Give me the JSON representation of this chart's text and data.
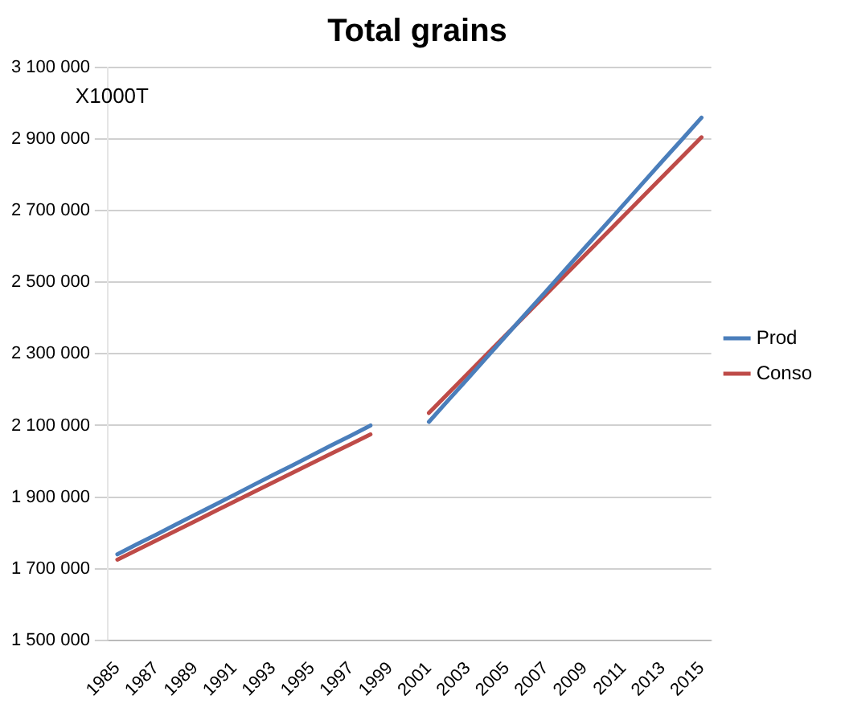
{
  "chart_data": {
    "type": "line",
    "title": "Total grains",
    "ylabel": "X1000T",
    "categories": [
      "1985",
      null,
      "1987",
      null,
      "1989",
      null,
      "1991",
      null,
      "1993",
      null,
      "1995",
      null,
      "1997",
      null,
      "1999",
      null,
      "2001",
      null,
      "2003",
      null,
      "2005",
      null,
      "2007",
      null,
      "2009",
      null,
      "2011",
      null,
      "2013",
      null,
      "2015"
    ],
    "series": [
      {
        "name": "Prod",
        "color": "#4a7ebb",
        "values": [
          1740000,
          1768000,
          1795000,
          1823000,
          1851000,
          1878000,
          1906000,
          1934000,
          1962000,
          1989000,
          2017000,
          2045000,
          2072000,
          2100000,
          null,
          null,
          2110000,
          2171000,
          2231000,
          2292000,
          2353000,
          2414000,
          2474000,
          2535000,
          2596000,
          2656000,
          2717000,
          2778000,
          2839000,
          2899000,
          2960000
        ]
      },
      {
        "name": "Conso",
        "color": "#be4b48",
        "values": [
          1725000,
          1752000,
          1779000,
          1806000,
          1833000,
          1860000,
          1887000,
          1914000,
          1941000,
          1968000,
          1995000,
          2022000,
          2048000,
          2075000,
          null,
          null,
          2135000,
          2190000,
          2245000,
          2300000,
          2355000,
          2410000,
          2465000,
          2520000,
          2575000,
          2630000,
          2685000,
          2740000,
          2795000,
          2850000,
          2905000
        ]
      }
    ],
    "ylim": [
      1500000,
      3100000
    ],
    "yticks": [
      {
        "value": 1500000,
        "label": "1 500 000"
      },
      {
        "value": 1700000,
        "label": "1 700 000"
      },
      {
        "value": 1900000,
        "label": "1 900 000"
      },
      {
        "value": 2100000,
        "label": "2 100 000"
      },
      {
        "value": 2300000,
        "label": "2 300 000"
      },
      {
        "value": 2500000,
        "label": "2 500 000"
      },
      {
        "value": 2700000,
        "label": "2 700 000"
      },
      {
        "value": 2900000,
        "label": "2 900 000"
      },
      {
        "value": 3100000,
        "label": "3 100 000"
      }
    ],
    "grid": "y",
    "legend": "right",
    "marker": "none",
    "line_style": "solid"
  }
}
